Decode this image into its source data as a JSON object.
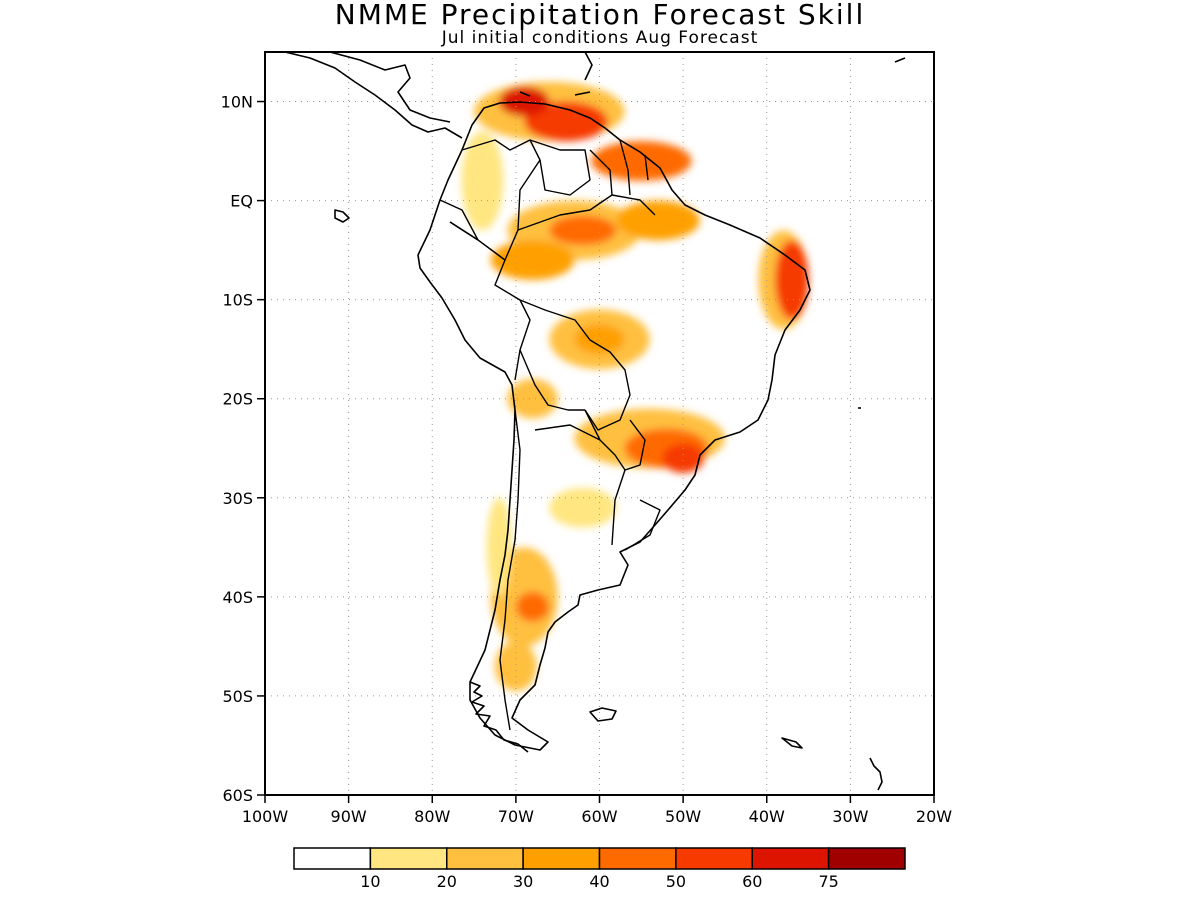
{
  "title": "NMME Precipitation Forecast Skill",
  "subtitle": "Jul initial conditions  Aug Forecast",
  "map": {
    "lon_range": [
      -100,
      -20
    ],
    "lat_range": [
      -60,
      15
    ],
    "lat_ticks": [
      {
        "value": 10,
        "label": "10N"
      },
      {
        "value": 0,
        "label": "EQ"
      },
      {
        "value": -10,
        "label": "10S"
      },
      {
        "value": -20,
        "label": "20S"
      },
      {
        "value": -30,
        "label": "30S"
      },
      {
        "value": -40,
        "label": "40S"
      },
      {
        "value": -50,
        "label": "50S"
      },
      {
        "value": -60,
        "label": "60S"
      }
    ],
    "lon_ticks": [
      {
        "value": -100,
        "label": "100W"
      },
      {
        "value": -90,
        "label": "90W"
      },
      {
        "value": -80,
        "label": "80W"
      },
      {
        "value": -70,
        "label": "70W"
      },
      {
        "value": -60,
        "label": "60W"
      },
      {
        "value": -50,
        "label": "50W"
      },
      {
        "value": -40,
        "label": "40W"
      },
      {
        "value": -30,
        "label": "30W"
      },
      {
        "value": -20,
        "label": "20W"
      }
    ],
    "grid": "dotted"
  },
  "colorbar": {
    "bins": [
      {
        "color": "#ffffff"
      },
      {
        "color": "#ffe680"
      },
      {
        "color": "#ffc040"
      },
      {
        "color": "#ffa000"
      },
      {
        "color": "#ff6a00"
      },
      {
        "color": "#f63a00"
      },
      {
        "color": "#dc1400"
      },
      {
        "color": "#a00000"
      }
    ],
    "labels": [
      "10",
      "20",
      "30",
      "40",
      "50",
      "60",
      "75"
    ]
  },
  "skill_regions": [
    {
      "lon": -66,
      "lat": 9,
      "rlon": 9,
      "rlat": 3,
      "level": 2
    },
    {
      "lon": -64,
      "lat": 8,
      "rlon": 5,
      "rlat": 2,
      "level": 5
    },
    {
      "lon": -69,
      "lat": 10,
      "rlon": 3,
      "rlat": 1.5,
      "level": 6
    },
    {
      "lon": -55,
      "lat": 4,
      "rlon": 6,
      "rlat": 2,
      "level": 4
    },
    {
      "lon": -63,
      "lat": -3,
      "rlon": 8,
      "rlat": 3,
      "level": 2
    },
    {
      "lon": -62,
      "lat": -3,
      "rlon": 4,
      "rlat": 1.5,
      "level": 4
    },
    {
      "lon": -68,
      "lat": -6,
      "rlon": 5,
      "rlat": 2,
      "level": 3
    },
    {
      "lon": -53,
      "lat": -2,
      "rlon": 5,
      "rlat": 2,
      "level": 3
    },
    {
      "lon": -38,
      "lat": -8,
      "rlon": 3,
      "rlat": 5,
      "level": 2
    },
    {
      "lon": -37,
      "lat": -8,
      "rlon": 2,
      "rlat": 4,
      "level": 5
    },
    {
      "lon": -60,
      "lat": -14,
      "rlon": 6,
      "rlat": 3,
      "level": 2
    },
    {
      "lon": -60,
      "lat": -14,
      "rlon": 3,
      "rlat": 1.5,
      "level": 3
    },
    {
      "lon": -54,
      "lat": -24,
      "rlon": 9,
      "rlat": 3,
      "level": 2
    },
    {
      "lon": -52,
      "lat": -25,
      "rlon": 5,
      "rlat": 2,
      "level": 4
    },
    {
      "lon": -50,
      "lat": -26,
      "rlon": 2.5,
      "rlat": 1.5,
      "level": 5
    },
    {
      "lon": -69,
      "lat": -40,
      "rlon": 4,
      "rlat": 5,
      "level": 2
    },
    {
      "lon": -68,
      "lat": -41,
      "rlon": 2,
      "rlat": 1.5,
      "level": 4
    },
    {
      "lon": -70,
      "lat": -47,
      "rlon": 2.5,
      "rlat": 2.5,
      "level": 2
    },
    {
      "lon": -62,
      "lat": -31,
      "rlon": 4,
      "rlat": 2,
      "level": 1
    },
    {
      "lon": -72,
      "lat": -35,
      "rlon": 1.5,
      "rlat": 5,
      "level": 1
    },
    {
      "lon": -74,
      "lat": 2,
      "rlon": 2.5,
      "rlat": 5,
      "level": 1
    },
    {
      "lon": -68,
      "lat": -20,
      "rlon": 3,
      "rlat": 2,
      "level": 2
    }
  ]
}
